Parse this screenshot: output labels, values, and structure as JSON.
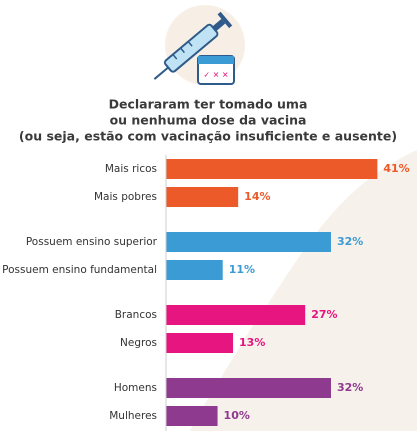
{
  "chart_data": {
    "type": "bar",
    "orientation": "horizontal",
    "title": [
      "Declararam ter tomado uma",
      "ou nenhuma dose da vacina",
      "(ou seja, estão com vacinação insuficiente e ausente)"
    ],
    "categories": [
      "Mais ricos",
      "Mais pobres",
      "Possuem ensino superior",
      "Possuem ensino fundamental",
      "Brancos",
      "Negros",
      "Homens",
      "Mulheres"
    ],
    "values": [
      41,
      14,
      32,
      11,
      27,
      13,
      32,
      10
    ],
    "value_labels": [
      "41%",
      "14%",
      "32%",
      "11%",
      "27%",
      "13%",
      "32%",
      "10%"
    ],
    "colors": [
      "#ec5a2a",
      "#ec5a2a",
      "#3a9bd5",
      "#3a9bd5",
      "#e6157f",
      "#e6157f",
      "#8e3a8f",
      "#8e3a8f"
    ],
    "xlim": [
      0,
      45
    ]
  }
}
